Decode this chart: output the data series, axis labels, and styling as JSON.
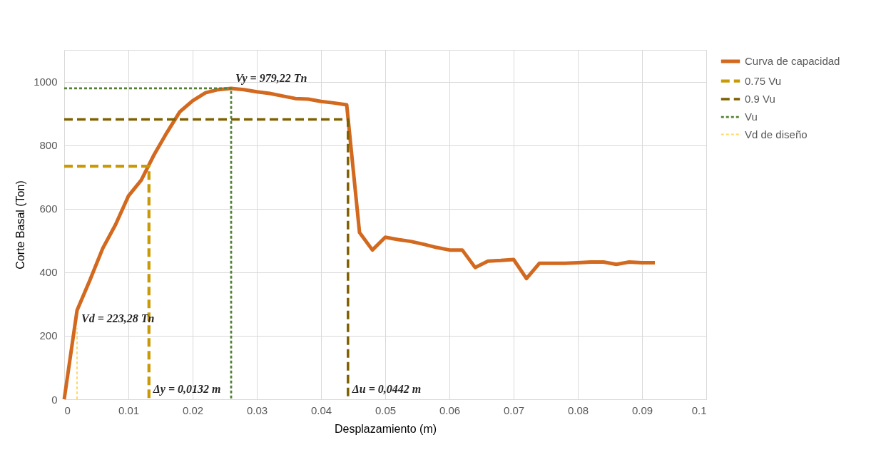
{
  "chart_data": {
    "type": "line",
    "xlabel": "Desplazamiento (m)",
    "ylabel": "Corte Basal (Ton)",
    "xlim": [
      0,
      0.1
    ],
    "xticks": [
      0,
      0.01,
      0.02,
      0.03,
      0.04,
      0.05,
      0.06,
      0.07,
      0.08,
      0.09,
      0.1
    ],
    "ylim": [
      0,
      1100
    ],
    "yticks": [
      0,
      200,
      400,
      600,
      800,
      1000
    ],
    "grid": true,
    "legend": "right",
    "marker": "none",
    "series": [
      {
        "name": "Curva de capacidad",
        "color": "#d2691e",
        "line_style": "solid",
        "x": [
          0,
          0.002,
          0.004,
          0.006,
          0.008,
          0.01,
          0.012,
          0.014,
          0.016,
          0.018,
          0.02,
          0.022,
          0.024,
          0.026,
          0.028,
          0.03,
          0.032,
          0.034,
          0.036,
          0.038,
          0.04,
          0.042,
          0.044,
          0.046,
          0.048,
          0.05,
          0.052,
          0.054,
          0.056,
          0.058,
          0.06,
          0.062,
          0.064,
          0.066,
          0.068,
          0.07,
          0.072,
          0.074,
          0.076,
          0.078,
          0.08,
          0.082,
          0.084,
          0.086,
          0.088,
          0.09,
          0.092
        ],
        "values": [
          0,
          280,
          375,
          475,
          550,
          640,
          690,
          770,
          840,
          905,
          940,
          965,
          975,
          979,
          975,
          968,
          963,
          955,
          947,
          945,
          938,
          933,
          927,
          525,
          470,
          510,
          503,
          497,
          488,
          478,
          470,
          470,
          415,
          435,
          437,
          440,
          380,
          428,
          428,
          428,
          430,
          432,
          432,
          425,
          432,
          430,
          430
        ]
      },
      {
        "name": "0.75 Vu",
        "color": "#c99a06",
        "line_style": "dashed",
        "x": [
          0,
          0.0132,
          0.0132
        ],
        "values": [
          734,
          734,
          0
        ]
      },
      {
        "name": "0.9 Vu",
        "color": "#7f6000",
        "line_style": "dashed",
        "x": [
          0,
          0.0442,
          0.0442
        ],
        "values": [
          881,
          881,
          0
        ]
      },
      {
        "name": "Vu",
        "color": "#548235",
        "line_style": "dotted",
        "x": [
          0,
          0.026,
          0.026
        ],
        "values": [
          979.22,
          979.22,
          0
        ]
      },
      {
        "name": "Vd de diseño",
        "color": "#ffd966",
        "line_style": "dotted",
        "x": [
          0.002,
          0.002
        ],
        "values": [
          0,
          223.28
        ]
      }
    ],
    "annotations": [
      {
        "text": "Vy = 979,22 Tn",
        "x": 0.026,
        "y": 979.22
      },
      {
        "text": "Vd = 223,28 Tn",
        "x": 0.002,
        "y": 223.28
      },
      {
        "text": "Δy = 0,0132 m",
        "x": 0.0132,
        "y": 0
      },
      {
        "text": "Δu = 0,0442 m",
        "x": 0.0442,
        "y": 0
      }
    ]
  }
}
